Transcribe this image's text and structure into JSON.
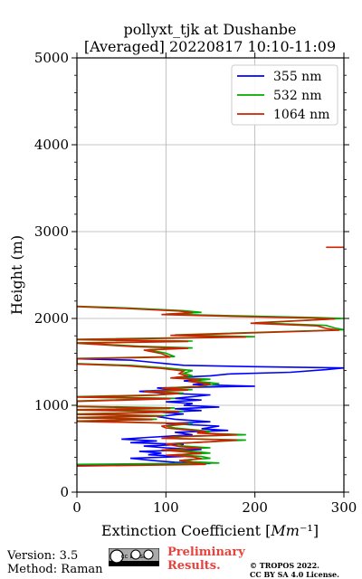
{
  "chart_data": {
    "type": "line",
    "title": "pollyxt_tjk at Dushanbe",
    "subtitle": "[Averaged] 20220817 10:10-11:09",
    "xlabel": "Extinction Coefficient [Mm⁻¹]",
    "ylabel": "Height (m)",
    "xlim": [
      0,
      300
    ],
    "ylim": [
      0,
      5000
    ],
    "x_ticks": [
      0,
      100,
      200,
      300
    ],
    "y_ticks": [
      0,
      1000,
      2000,
      3000,
      4000,
      5000
    ],
    "grid": true,
    "legend_position": "top-right",
    "series": [
      {
        "name": "355 nm",
        "color": "#0000ff",
        "points": [
          [
            0,
            310
          ],
          [
            150,
            330
          ],
          [
            110,
            345
          ],
          [
            90,
            360
          ],
          [
            60,
            390
          ],
          [
            120,
            410
          ],
          [
            80,
            430
          ],
          [
            95,
            450
          ],
          [
            70,
            470
          ],
          [
            140,
            490
          ],
          [
            100,
            510
          ],
          [
            75,
            530
          ],
          [
            120,
            550
          ],
          [
            60,
            570
          ],
          [
            90,
            590
          ],
          [
            50,
            610
          ],
          [
            80,
            630
          ],
          [
            130,
            660
          ],
          [
            110,
            690
          ],
          [
            170,
            710
          ],
          [
            140,
            730
          ],
          [
            160,
            760
          ],
          [
            100,
            790
          ],
          [
            150,
            810
          ],
          [
            110,
            840
          ],
          [
            90,
            870
          ],
          [
            120,
            900
          ],
          [
            95,
            920
          ],
          [
            140,
            940
          ],
          [
            110,
            960
          ],
          [
            160,
            980
          ],
          [
            120,
            1000
          ],
          [
            130,
            1020
          ],
          [
            100,
            1040
          ],
          [
            140,
            1060
          ],
          [
            110,
            1080
          ],
          [
            130,
            1100
          ],
          [
            150,
            1120
          ],
          [
            95,
            1140
          ],
          [
            70,
            1160
          ],
          [
            110,
            1180
          ],
          [
            90,
            1200
          ],
          [
            200,
            1220
          ],
          [
            130,
            1240
          ],
          [
            150,
            1260
          ],
          [
            120,
            1280
          ],
          [
            140,
            1300
          ],
          [
            110,
            1320
          ],
          [
            150,
            1340
          ],
          [
            170,
            1360
          ],
          [
            240,
            1380
          ],
          [
            280,
            1410
          ],
          [
            300,
            1430
          ],
          [
            200,
            1445
          ],
          [
            120,
            1460
          ],
          [
            100,
            1480
          ],
          [
            80,
            1500
          ],
          [
            60,
            1520
          ],
          [
            0,
            1535
          ]
        ]
      },
      {
        "name": "532 nm",
        "color": "#00aa00",
        "points": [
          [
            0,
            320
          ],
          [
            160,
            335
          ],
          [
            130,
            350
          ],
          [
            120,
            370
          ],
          [
            150,
            390
          ],
          [
            140,
            410
          ],
          [
            110,
            430
          ],
          [
            150,
            450
          ],
          [
            130,
            470
          ],
          [
            100,
            490
          ],
          [
            150,
            510
          ],
          [
            120,
            530
          ],
          [
            110,
            560
          ],
          [
            150,
            580
          ],
          [
            190,
            600
          ],
          [
            100,
            620
          ],
          [
            120,
            640
          ],
          [
            190,
            660
          ],
          [
            140,
            680
          ],
          [
            150,
            700
          ],
          [
            130,
            720
          ],
          [
            110,
            740
          ],
          [
            100,
            760
          ],
          [
            130,
            790
          ],
          [
            0,
            820
          ],
          [
            90,
            840
          ],
          [
            0,
            860
          ],
          [
            100,
            880
          ],
          [
            0,
            900
          ],
          [
            120,
            930
          ],
          [
            0,
            950
          ],
          [
            110,
            970
          ],
          [
            0,
            990
          ],
          [
            0,
            1050
          ],
          [
            110,
            1080
          ],
          [
            0,
            1100
          ],
          [
            90,
            1120
          ],
          [
            120,
            1140
          ],
          [
            80,
            1160
          ],
          [
            130,
            1180
          ],
          [
            100,
            1200
          ],
          [
            140,
            1220
          ],
          [
            160,
            1250
          ],
          [
            130,
            1280
          ],
          [
            150,
            1300
          ],
          [
            110,
            1320
          ],
          [
            130,
            1340
          ],
          [
            120,
            1370
          ],
          [
            130,
            1400
          ],
          [
            100,
            1430
          ],
          [
            60,
            1460
          ],
          [
            0,
            1480
          ],
          [
            0,
            1540
          ],
          [
            110,
            1560
          ],
          [
            100,
            1600
          ],
          [
            80,
            1640
          ],
          [
            130,
            1660
          ],
          [
            70,
            1680
          ],
          [
            0,
            1720
          ],
          [
            130,
            1740
          ],
          [
            0,
            1760
          ],
          [
            200,
            1790
          ],
          [
            110,
            1810
          ],
          [
            300,
            1870
          ],
          [
            290,
            1890
          ],
          [
            280,
            1920
          ],
          [
            200,
            1950
          ],
          [
            300,
            2000
          ],
          [
            270,
            2010
          ],
          [
            180,
            2030
          ],
          [
            100,
            2050
          ],
          [
            140,
            2070
          ],
          [
            120,
            2090
          ],
          [
            60,
            2120
          ],
          [
            0,
            2140
          ]
        ]
      },
      {
        "name": "1064 nm",
        "color": "#cc2200",
        "points": [
          [
            0,
            300
          ],
          [
            145,
            320
          ],
          [
            130,
            340
          ],
          [
            115,
            365
          ],
          [
            140,
            385
          ],
          [
            130,
            405
          ],
          [
            100,
            425
          ],
          [
            140,
            445
          ],
          [
            120,
            465
          ],
          [
            95,
            485
          ],
          [
            140,
            505
          ],
          [
            115,
            525
          ],
          [
            100,
            555
          ],
          [
            140,
            575
          ],
          [
            180,
            600
          ],
          [
            95,
            620
          ],
          [
            110,
            640
          ],
          [
            180,
            660
          ],
          [
            135,
            680
          ],
          [
            145,
            700
          ],
          [
            120,
            720
          ],
          [
            100,
            740
          ],
          [
            95,
            760
          ],
          [
            125,
            790
          ],
          [
            0,
            815
          ],
          [
            85,
            835
          ],
          [
            0,
            855
          ],
          [
            95,
            875
          ],
          [
            0,
            895
          ],
          [
            115,
            925
          ],
          [
            0,
            945
          ],
          [
            105,
            965
          ],
          [
            0,
            985
          ],
          [
            0,
            1045
          ],
          [
            105,
            1075
          ],
          [
            0,
            1095
          ],
          [
            85,
            1115
          ],
          [
            115,
            1135
          ],
          [
            75,
            1155
          ],
          [
            125,
            1175
          ],
          [
            95,
            1195
          ],
          [
            135,
            1215
          ],
          [
            150,
            1245
          ],
          [
            125,
            1275
          ],
          [
            140,
            1295
          ],
          [
            105,
            1315
          ],
          [
            125,
            1335
          ],
          [
            115,
            1365
          ],
          [
            120,
            1395
          ],
          [
            95,
            1425
          ],
          [
            55,
            1455
          ],
          [
            0,
            1475
          ],
          [
            0,
            1535
          ],
          [
            105,
            1555
          ],
          [
            95,
            1595
          ],
          [
            75,
            1635
          ],
          [
            125,
            1655
          ],
          [
            65,
            1675
          ],
          [
            0,
            1715
          ],
          [
            125,
            1735
          ],
          [
            0,
            1755
          ],
          [
            190,
            1785
          ],
          [
            105,
            1805
          ],
          [
            295,
            1865
          ],
          [
            280,
            1885
          ],
          [
            270,
            1915
          ],
          [
            195,
            1945
          ],
          [
            290,
            1995
          ],
          [
            260,
            2005
          ],
          [
            170,
            2025
          ],
          [
            95,
            2045
          ],
          [
            130,
            2065
          ],
          [
            115,
            2085
          ],
          [
            55,
            2115
          ],
          [
            0,
            2135
          ],
          [
            280,
            2820
          ],
          [
            300,
            2820
          ]
        ]
      }
    ]
  },
  "footer": {
    "version": "Version: 3.5",
    "method": "Method: Raman",
    "license_badge": "cc by sa",
    "preliminary_line1": "Preliminary",
    "preliminary_line2": "Results.",
    "copyright_line1": "© TROPOS 2022.",
    "copyright_line2": "CC BY SA 4.0 License."
  }
}
